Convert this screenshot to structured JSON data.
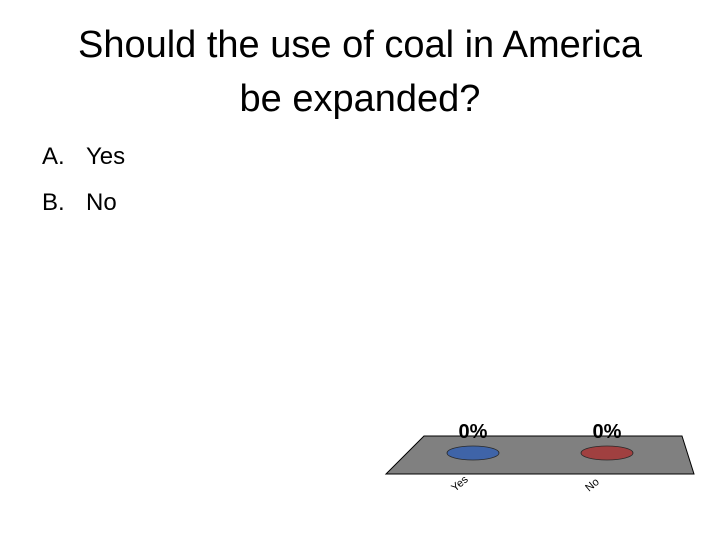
{
  "slide": {
    "title_line1": "Should the use of coal in America",
    "title_line2": "be expanded?",
    "answers": [
      {
        "letter": "A.",
        "text": "Yes"
      },
      {
        "letter": "B.",
        "text": "No"
      }
    ]
  },
  "chart_data": {
    "type": "bar",
    "categories": [
      "Yes",
      "No"
    ],
    "values": [
      0,
      0
    ],
    "data_labels": [
      "0%",
      "0%"
    ],
    "units": "%",
    "style": "3d-floor-with-ellipse-markers",
    "colors": {
      "floor": "#808080",
      "floor_stroke": "#000000",
      "series": [
        "#3f64a8",
        "#a04040"
      ]
    }
  }
}
